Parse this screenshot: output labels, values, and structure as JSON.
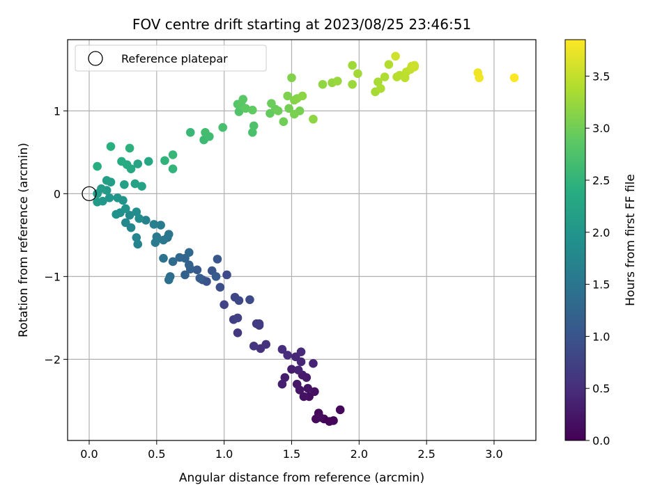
{
  "chart_data": {
    "type": "scatter",
    "title": "FOV centre drift starting at 2023/08/25 23:46:51",
    "xlabel": "Angular distance from reference (arcmin)",
    "ylabel": "Rotation from reference (arcmin)",
    "xlim": [
      -0.16,
      3.31
    ],
    "ylim": [
      -2.98,
      1.86
    ],
    "xticks": [
      0.0,
      0.5,
      1.0,
      1.5,
      2.0,
      2.5,
      3.0
    ],
    "xtick_labels": [
      "0.0",
      "0.5",
      "1.0",
      "1.5",
      "2.0",
      "2.5",
      "3.0"
    ],
    "yticks": [
      -2,
      -1,
      0,
      1
    ],
    "ytick_labels": [
      "−2",
      "−1",
      "0",
      "1"
    ],
    "grid": true,
    "legend": {
      "position": "upper-left",
      "entries": [
        {
          "label": "Reference platepar",
          "marker": "open-circle",
          "x": 0.0,
          "y": 0.0
        }
      ]
    },
    "colorbar": {
      "label": "Hours from first FF file",
      "colormap": "viridis",
      "range": [
        0.0,
        3.85
      ],
      "ticks": [
        0.0,
        0.5,
        1.0,
        1.5,
        2.0,
        2.5,
        3.0,
        3.5
      ],
      "tick_labels": [
        "0.0",
        "0.5",
        "1.0",
        "1.5",
        "2.0",
        "2.5",
        "3.0",
        "3.5"
      ]
    },
    "points": [
      [
        1.74,
        -2.72,
        0.02
      ],
      [
        1.78,
        -2.75,
        0.04
      ],
      [
        1.81,
        -2.74,
        0.05
      ],
      [
        1.86,
        -2.61,
        0.07
      ],
      [
        1.7,
        -2.65,
        0.08
      ],
      [
        1.68,
        -2.72,
        0.1
      ],
      [
        1.71,
        -2.7,
        0.12
      ],
      [
        1.63,
        -2.45,
        0.14
      ],
      [
        1.67,
        -2.39,
        0.16
      ],
      [
        1.59,
        -2.45,
        0.18
      ],
      [
        1.62,
        -2.35,
        0.2
      ],
      [
        1.56,
        -2.37,
        0.22
      ],
      [
        1.54,
        -2.3,
        0.24
      ],
      [
        1.61,
        -2.22,
        0.26
      ],
      [
        1.58,
        -2.19,
        0.28
      ],
      [
        1.5,
        -2.12,
        0.3
      ],
      [
        1.45,
        -2.22,
        0.32
      ],
      [
        1.43,
        -2.3,
        0.34
      ],
      [
        1.55,
        -2.13,
        0.36
      ],
      [
        1.66,
        -2.05,
        0.38
      ],
      [
        1.57,
        -2.03,
        0.4
      ],
      [
        1.53,
        -1.97,
        0.43
      ],
      [
        1.57,
        -1.91,
        0.46
      ],
      [
        1.47,
        -1.95,
        0.48
      ],
      [
        1.43,
        -1.88,
        0.5
      ],
      [
        1.27,
        -1.87,
        0.53
      ],
      [
        1.31,
        -1.82,
        0.56
      ],
      [
        1.22,
        -1.84,
        0.58
      ],
      [
        1.1,
        -1.68,
        0.6
      ],
      [
        1.26,
        -1.59,
        0.63
      ],
      [
        1.24,
        -1.57,
        0.66
      ],
      [
        1.26,
        -1.57,
        0.68
      ],
      [
        1.07,
        -1.52,
        0.71
      ],
      [
        1.1,
        -1.5,
        0.74
      ],
      [
        1.0,
        -1.34,
        0.77
      ],
      [
        1.08,
        -1.25,
        0.8
      ],
      [
        1.11,
        -1.29,
        0.83
      ],
      [
        1.19,
        -1.28,
        0.86
      ],
      [
        1.02,
        -0.98,
        0.89
      ],
      [
        0.97,
        -1.13,
        0.92
      ],
      [
        0.87,
        -1.06,
        0.95
      ],
      [
        0.84,
        -1.04,
        0.98
      ],
      [
        0.91,
        -0.93,
        1.01
      ],
      [
        0.95,
        -0.79,
        1.04
      ],
      [
        0.8,
        -0.92,
        1.07
      ],
      [
        0.94,
        -1.0,
        1.1
      ],
      [
        0.82,
        -1.02,
        1.13
      ],
      [
        0.75,
        -0.91,
        1.16
      ],
      [
        0.71,
        -0.98,
        1.19
      ],
      [
        0.74,
        -0.86,
        1.22
      ],
      [
        0.71,
        -0.78,
        1.25
      ],
      [
        0.67,
        -0.77,
        1.28
      ],
      [
        0.74,
        -0.71,
        1.31
      ],
      [
        0.62,
        -0.82,
        1.34
      ],
      [
        0.6,
        -1.0,
        1.37
      ],
      [
        0.59,
        -1.04,
        1.4
      ],
      [
        0.55,
        -0.78,
        1.43
      ],
      [
        0.58,
        -0.53,
        1.46
      ],
      [
        0.59,
        -0.49,
        1.49
      ],
      [
        0.55,
        -0.56,
        1.52
      ],
      [
        0.5,
        -0.52,
        1.55
      ],
      [
        0.49,
        -0.59,
        1.58
      ],
      [
        0.53,
        -0.38,
        1.61
      ],
      [
        0.48,
        -0.37,
        1.64
      ],
      [
        0.42,
        -0.32,
        1.67
      ],
      [
        0.36,
        -0.61,
        1.7
      ],
      [
        0.35,
        -0.53,
        1.73
      ],
      [
        0.31,
        -0.41,
        1.76
      ],
      [
        0.27,
        -0.35,
        1.79
      ],
      [
        0.3,
        -0.26,
        1.82
      ],
      [
        0.37,
        -0.3,
        1.85
      ],
      [
        0.35,
        -0.22,
        1.88
      ],
      [
        0.23,
        -0.23,
        1.91
      ],
      [
        0.2,
        -0.25,
        1.93
      ],
      [
        0.27,
        -0.18,
        1.95
      ],
      [
        0.25,
        -0.08,
        1.97
      ],
      [
        0.21,
        -0.05,
        1.99
      ],
      [
        0.15,
        -0.05,
        2.01
      ],
      [
        0.1,
        -0.09,
        2.03
      ],
      [
        0.06,
        -0.1,
        2.05
      ],
      [
        0.13,
        0.04,
        2.07
      ],
      [
        0.06,
        0.0,
        2.09
      ],
      [
        0.09,
        0.06,
        2.11
      ],
      [
        0.16,
        0.14,
        2.13
      ],
      [
        0.13,
        0.16,
        2.15
      ],
      [
        0.26,
        0.11,
        2.17
      ],
      [
        0.34,
        0.12,
        2.19
      ],
      [
        0.39,
        0.09,
        2.21
      ],
      [
        0.36,
        0.36,
        2.24
      ],
      [
        0.44,
        0.39,
        2.27
      ],
      [
        0.31,
        0.3,
        2.3
      ],
      [
        0.28,
        0.35,
        2.33
      ],
      [
        0.24,
        0.39,
        2.36
      ],
      [
        0.06,
        0.33,
        2.39
      ],
      [
        0.16,
        0.57,
        2.42
      ],
      [
        0.3,
        0.55,
        2.45
      ],
      [
        0.56,
        0.4,
        2.48
      ],
      [
        0.62,
        0.3,
        2.51
      ],
      [
        0.62,
        0.47,
        2.54
      ],
      [
        0.75,
        0.74,
        2.57
      ],
      [
        0.85,
        0.65,
        2.6
      ],
      [
        0.89,
        0.69,
        2.63
      ],
      [
        0.86,
        0.74,
        2.66
      ],
      [
        0.99,
        0.8,
        2.69
      ],
      [
        1.21,
        0.74,
        2.72
      ],
      [
        1.22,
        0.82,
        2.75
      ],
      [
        1.11,
        0.99,
        2.78
      ],
      [
        1.1,
        1.08,
        2.81
      ],
      [
        1.13,
        1.06,
        2.84
      ],
      [
        1.14,
        1.14,
        2.86
      ],
      [
        1.16,
        1.03,
        2.88
      ],
      [
        1.21,
        1.01,
        2.9
      ],
      [
        1.34,
        0.97,
        2.92
      ],
      [
        1.38,
        1.02,
        2.94
      ],
      [
        1.35,
        1.09,
        2.96
      ],
      [
        1.4,
        1.0,
        2.98
      ],
      [
        1.44,
        0.87,
        3.0
      ],
      [
        1.48,
        1.03,
        3.02
      ],
      [
        1.56,
        1.0,
        3.04
      ],
      [
        1.52,
        0.96,
        3.06
      ],
      [
        1.47,
        1.18,
        3.08
      ],
      [
        1.5,
        1.4,
        3.1
      ],
      [
        1.52,
        1.13,
        3.12
      ],
      [
        1.54,
        1.15,
        3.14
      ],
      [
        1.58,
        1.18,
        3.16
      ],
      [
        1.66,
        0.9,
        3.18
      ],
      [
        1.73,
        1.32,
        3.2
      ],
      [
        1.8,
        1.34,
        3.22
      ],
      [
        1.84,
        1.36,
        3.24
      ],
      [
        1.95,
        1.32,
        3.26
      ],
      [
        1.95,
        1.55,
        3.28
      ],
      [
        1.99,
        1.45,
        3.3
      ],
      [
        2.12,
        1.23,
        3.32
      ],
      [
        2.14,
        1.35,
        3.34
      ],
      [
        2.16,
        1.27,
        3.36
      ],
      [
        2.19,
        1.41,
        3.38
      ],
      [
        2.22,
        1.56,
        3.4
      ],
      [
        2.28,
        1.41,
        3.42
      ],
      [
        2.3,
        1.43,
        3.44
      ],
      [
        2.34,
        1.4,
        3.46
      ],
      [
        2.35,
        1.47,
        3.48
      ],
      [
        2.38,
        1.5,
        3.5
      ],
      [
        2.39,
        1.54,
        3.52
      ],
      [
        2.41,
        1.53,
        3.54
      ],
      [
        2.41,
        1.55,
        3.56
      ],
      [
        2.27,
        1.66,
        3.58
      ],
      [
        2.88,
        1.46,
        3.76
      ],
      [
        2.89,
        1.4,
        3.78
      ],
      [
        3.15,
        1.4,
        3.85
      ]
    ]
  }
}
